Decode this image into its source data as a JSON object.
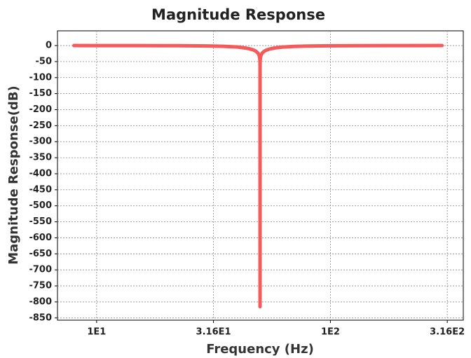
{
  "chart_data": {
    "type": "line",
    "title": "Magnitude Response",
    "xlabel": "Frequency (Hz)",
    "ylabel": "Magnitude Response(dB)",
    "xscale": "log",
    "grid": true,
    "color": "#f55b5b",
    "x": [
      8,
      10,
      15,
      20,
      25,
      30,
      35,
      40,
      43,
      45,
      47,
      48,
      49,
      49.5,
      49.8,
      49.9,
      49.95,
      49.98,
      49.99,
      50,
      50.01,
      50.02,
      50.05,
      50.1,
      50.2,
      50.5,
      51,
      52,
      53,
      55,
      58,
      62,
      70,
      80,
      100,
      130,
      170,
      220,
      300
    ],
    "values": [
      -0.05,
      -0.07,
      -0.18,
      -0.37,
      -0.7,
      -1.28,
      -2.4,
      -4.67,
      -7.21,
      -9.9,
      -14.2,
      -17.7,
      -23.8,
      -29.9,
      -37.8,
      -43.9,
      -49.9,
      -57.9,
      -63.9,
      -815,
      -63.9,
      -57.9,
      -49.9,
      -43.9,
      -37.9,
      -29.9,
      -24,
      -18.1,
      -14.7,
      -10.7,
      -7.3,
      -4.88,
      -2.63,
      -1.49,
      -0.7,
      -0.33,
      -0.17,
      -0.1,
      -0.05
    ],
    "xlim": [
      6.8,
      370
    ],
    "ylim": [
      -857,
      46
    ],
    "xticks": [
      {
        "value": 10,
        "label": "1E1"
      },
      {
        "value": 31.6,
        "label": "3.16E1"
      },
      {
        "value": 100,
        "label": "1E2"
      },
      {
        "value": 316,
        "label": "3.16E2"
      }
    ],
    "yticks": [
      0,
      -50,
      -100,
      -150,
      -200,
      -250,
      -300,
      -350,
      -400,
      -450,
      -500,
      -550,
      -600,
      -650,
      -700,
      -750,
      -800,
      -850
    ]
  }
}
